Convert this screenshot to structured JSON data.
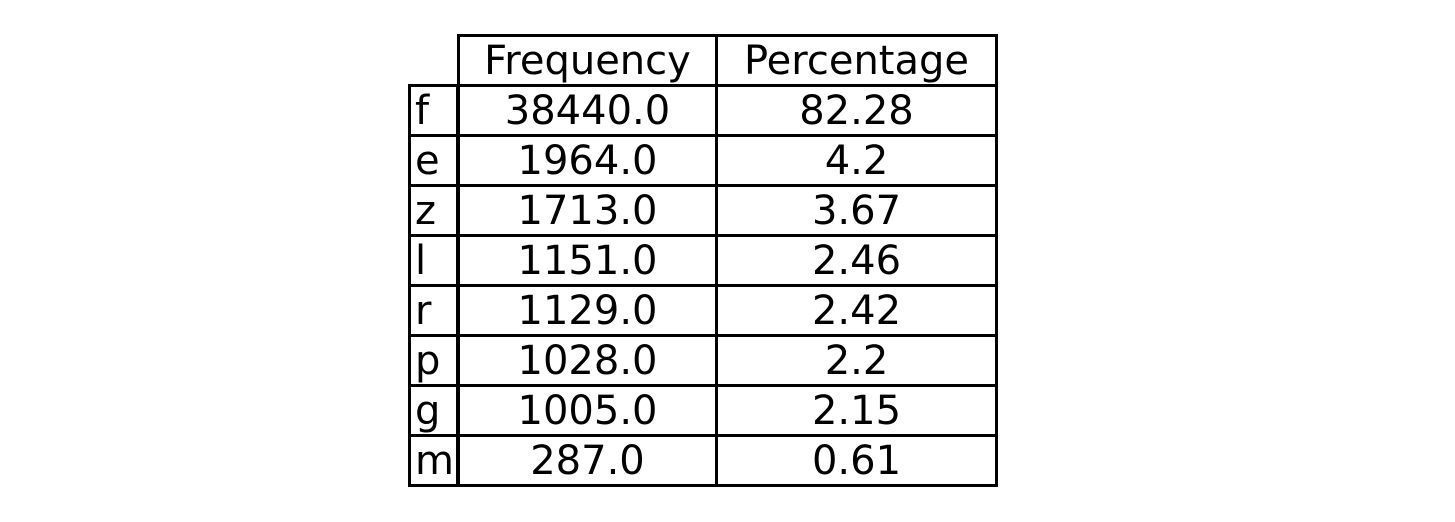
{
  "chart_data": {
    "type": "table",
    "columns": [
      "Frequency",
      "Percentage"
    ],
    "rows": [
      {
        "label": "f",
        "values": [
          "38440.0",
          "82.28"
        ]
      },
      {
        "label": "e",
        "values": [
          "1964.0",
          "4.2"
        ]
      },
      {
        "label": "z",
        "values": [
          "1713.0",
          "3.67"
        ]
      },
      {
        "label": "l",
        "values": [
          "1151.0",
          "2.46"
        ]
      },
      {
        "label": "r",
        "values": [
          "1129.0",
          "2.42"
        ]
      },
      {
        "label": "p",
        "values": [
          "1028.0",
          "2.2"
        ]
      },
      {
        "label": "g",
        "values": [
          "1005.0",
          "2.15"
        ]
      },
      {
        "label": "m",
        "values": [
          "287.0",
          "0.61"
        ]
      }
    ]
  }
}
